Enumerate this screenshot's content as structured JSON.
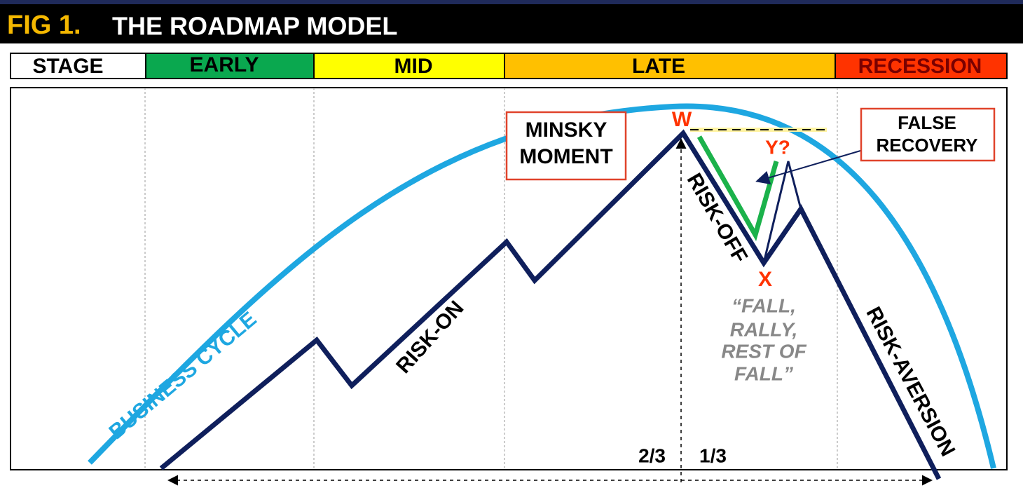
{
  "header": {
    "fig": "FIG 1.",
    "title": "THE ROADMAP MODEL"
  },
  "stages": [
    "STAGE",
    "EARLY",
    "MID",
    "LATE",
    "RECESSION"
  ],
  "labels": {
    "minsky": [
      "MINSKY",
      "MOMENT"
    ],
    "false_recovery": [
      "FALSE",
      "RECOVERY"
    ],
    "w": "W",
    "x": "X",
    "y": "Y?",
    "risk_on": "RISK-ON",
    "risk_off": "RISK-OFF",
    "risk_aversion": "RISK-AVERSION",
    "business_cycle": "BUSINESS CYCLE",
    "quote": [
      "“FALL,",
      "RALLY,",
      "REST OF",
      "FALL”"
    ],
    "two_thirds": "2/3",
    "one_third": "1/3"
  }
}
